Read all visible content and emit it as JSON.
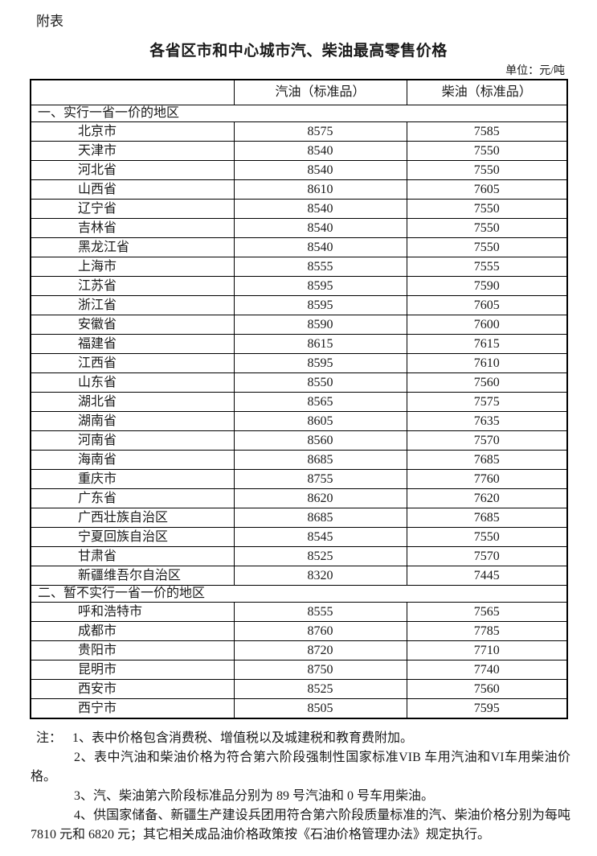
{
  "page": {
    "appendix_label": "附表",
    "title": "各省区市和中心城市汽、柴油最高零售价格",
    "unit_label": "单位：元/吨"
  },
  "table": {
    "columns": [
      "",
      "汽油（标准品）",
      "柴油（标准品）"
    ],
    "sections": [
      {
        "header": "一、实行一省一价的地区",
        "rows": [
          [
            "北京市",
            "8575",
            "7585"
          ],
          [
            "天津市",
            "8540",
            "7550"
          ],
          [
            "河北省",
            "8540",
            "7550"
          ],
          [
            "山西省",
            "8610",
            "7605"
          ],
          [
            "辽宁省",
            "8540",
            "7550"
          ],
          [
            "吉林省",
            "8540",
            "7550"
          ],
          [
            "黑龙江省",
            "8540",
            "7550"
          ],
          [
            "上海市",
            "8555",
            "7555"
          ],
          [
            "江苏省",
            "8595",
            "7590"
          ],
          [
            "浙江省",
            "8595",
            "7605"
          ],
          [
            "安徽省",
            "8590",
            "7600"
          ],
          [
            "福建省",
            "8615",
            "7615"
          ],
          [
            "江西省",
            "8595",
            "7610"
          ],
          [
            "山东省",
            "8550",
            "7560"
          ],
          [
            "湖北省",
            "8565",
            "7575"
          ],
          [
            "湖南省",
            "8605",
            "7635"
          ],
          [
            "河南省",
            "8560",
            "7570"
          ],
          [
            "海南省",
            "8685",
            "7685"
          ],
          [
            "重庆市",
            "8755",
            "7760"
          ],
          [
            "广东省",
            "8620",
            "7620"
          ],
          [
            "广西壮族自治区",
            "8685",
            "7685"
          ],
          [
            "宁夏回族自治区",
            "8545",
            "7550"
          ],
          [
            "甘肃省",
            "8525",
            "7570"
          ],
          [
            "新疆维吾尔自治区",
            "8320",
            "7445"
          ]
        ]
      },
      {
        "header": "二、暂不实行一省一价的地区",
        "rows": [
          [
            "呼和浩特市",
            "8555",
            "7565"
          ],
          [
            "成都市",
            "8760",
            "7785"
          ],
          [
            "贵阳市",
            "8720",
            "7710"
          ],
          [
            "昆明市",
            "8750",
            "7740"
          ],
          [
            "西安市",
            "8525",
            "7560"
          ],
          [
            "西宁市",
            "8505",
            "7595"
          ]
        ]
      }
    ]
  },
  "notes": {
    "label": "注：",
    "items": [
      "1、表中价格包含消费税、增值税以及城建税和教育费附加。",
      "2、表中汽油和柴油价格为符合第六阶段强制性国家标准VIB 车用汽油和VI车用柴油价格。",
      "3、汽、柴油第六阶段标准品分别为 89 号汽油和 0 号车用柴油。",
      "4、供国家储备、新疆生产建设兵团用符合第六阶段质量标准的汽、柴油价格分别为每吨7810 元和 6820 元；其它相关成品油价格政策按《石油价格管理办法》规定执行。"
    ]
  },
  "colors": {
    "text": "#1a1a1a",
    "border": "#000000",
    "background": "#ffffff"
  }
}
